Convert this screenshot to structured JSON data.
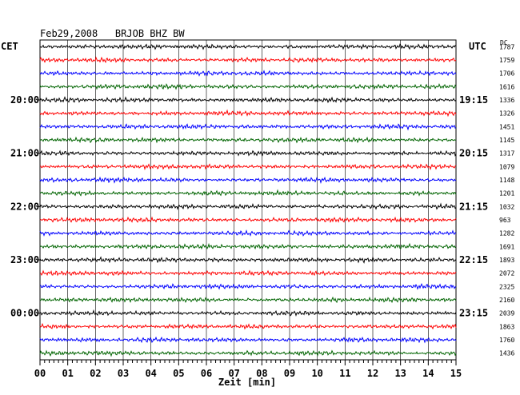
{
  "chart_data": {
    "type": "line",
    "title": "Feb29,2008   BRJOB BHZ BW",
    "xlabel": "Zeit [min]",
    "left_axis_label": "CET",
    "right_axis_label": "UTC",
    "dc_label": "DC",
    "x_ticks": [
      "00",
      "01",
      "02",
      "03",
      "04",
      "05",
      "06",
      "07",
      "08",
      "09",
      "10",
      "11",
      "12",
      "13",
      "14",
      "15"
    ],
    "xlim": [
      0,
      15
    ],
    "grid": true,
    "colors": [
      "#000000",
      "#ff0000",
      "#0000ff",
      "#006400"
    ],
    "traces": [
      {
        "row": 1,
        "color": "#000000",
        "dc": "1787",
        "cet": "",
        "utc": ""
      },
      {
        "row": 2,
        "color": "#ff0000",
        "dc": "1759",
        "cet": "",
        "utc": ""
      },
      {
        "row": 3,
        "color": "#0000ff",
        "dc": "1706",
        "cet": "",
        "utc": ""
      },
      {
        "row": 4,
        "color": "#006400",
        "dc": "1616",
        "cet": "",
        "utc": ""
      },
      {
        "row": 5,
        "color": "#000000",
        "dc": "1336",
        "cet": "20:00",
        "utc": "19:15"
      },
      {
        "row": 6,
        "color": "#ff0000",
        "dc": "1326",
        "cet": "",
        "utc": ""
      },
      {
        "row": 7,
        "color": "#0000ff",
        "dc": "1451",
        "cet": "",
        "utc": ""
      },
      {
        "row": 8,
        "color": "#006400",
        "dc": "1145",
        "cet": "",
        "utc": ""
      },
      {
        "row": 9,
        "color": "#000000",
        "dc": "1317",
        "cet": "21:00",
        "utc": "20:15"
      },
      {
        "row": 10,
        "color": "#ff0000",
        "dc": "1079",
        "cet": "",
        "utc": ""
      },
      {
        "row": 11,
        "color": "#0000ff",
        "dc": "1148",
        "cet": "",
        "utc": ""
      },
      {
        "row": 12,
        "color": "#006400",
        "dc": "1201",
        "cet": "",
        "utc": ""
      },
      {
        "row": 13,
        "color": "#000000",
        "dc": "1032",
        "cet": "22:00",
        "utc": "21:15"
      },
      {
        "row": 14,
        "color": "#ff0000",
        "dc": "963",
        "cet": "",
        "utc": ""
      },
      {
        "row": 15,
        "color": "#0000ff",
        "dc": "1282",
        "cet": "",
        "utc": ""
      },
      {
        "row": 16,
        "color": "#006400",
        "dc": "1691",
        "cet": "",
        "utc": ""
      },
      {
        "row": 17,
        "color": "#000000",
        "dc": "1893",
        "cet": "23:00",
        "utc": "22:15"
      },
      {
        "row": 18,
        "color": "#ff0000",
        "dc": "2072",
        "cet": "",
        "utc": ""
      },
      {
        "row": 19,
        "color": "#0000ff",
        "dc": "2325",
        "cet": "",
        "utc": ""
      },
      {
        "row": 20,
        "color": "#006400",
        "dc": "2160",
        "cet": "",
        "utc": ""
      },
      {
        "row": 21,
        "color": "#000000",
        "dc": "2039",
        "cet": "00:00",
        "utc": "23:15"
      },
      {
        "row": 22,
        "color": "#ff0000",
        "dc": "1863",
        "cet": "",
        "utc": ""
      },
      {
        "row": 23,
        "color": "#0000ff",
        "dc": "1760",
        "cet": "",
        "utc": ""
      },
      {
        "row": 24,
        "color": "#006400",
        "dc": "1436",
        "cet": "",
        "utc": ""
      }
    ]
  }
}
